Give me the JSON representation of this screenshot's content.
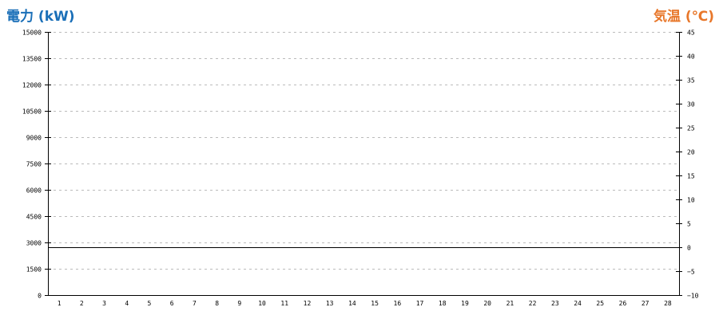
{
  "chart_data": {
    "type": "line",
    "left_axis": {
      "label": "電力 (kW)",
      "range": [
        0,
        15000
      ],
      "ticks": [
        0,
        1500,
        3000,
        4500,
        6000,
        7500,
        9000,
        10500,
        12000,
        13500,
        15000
      ],
      "color": "#1a6fb8"
    },
    "right_axis": {
      "label": "気温 (℃)",
      "range": [
        -10,
        45
      ],
      "ticks": [
        -10,
        -5,
        0,
        5,
        10,
        15,
        20,
        25,
        30,
        35,
        40,
        45
      ],
      "color": "#e8772a"
    },
    "x_categories": [
      1,
      2,
      3,
      4,
      5,
      6,
      7,
      8,
      9,
      10,
      11,
      12,
      13,
      14,
      15,
      16,
      17,
      18,
      19,
      20,
      21,
      22,
      23,
      24,
      25,
      26,
      27,
      28
    ],
    "grid": true,
    "reference_line": {
      "axis": "right",
      "value": 0
    },
    "series": []
  }
}
